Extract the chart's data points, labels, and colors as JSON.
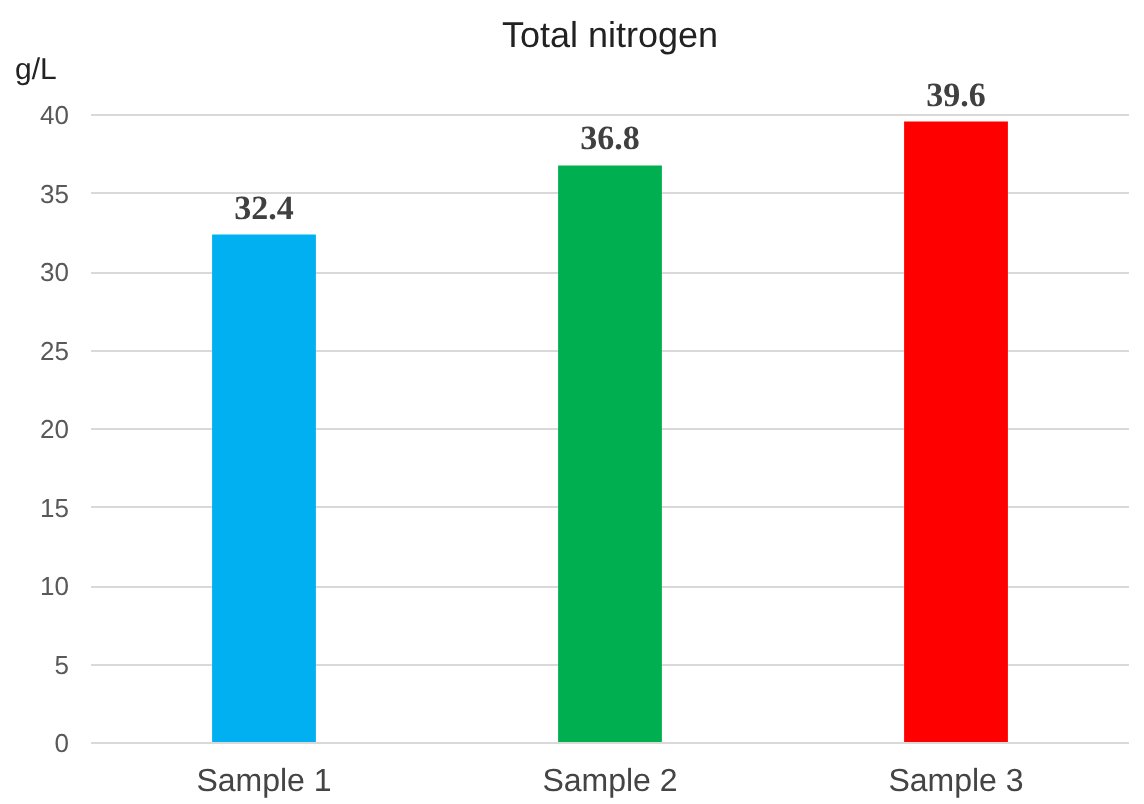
{
  "chart_data": {
    "type": "bar",
    "title": "Total nitrogen",
    "ylabel": "g/L",
    "categories": [
      "Sample 1",
      "Sample 2",
      "Sample 3"
    ],
    "values": [
      32.4,
      36.8,
      39.6
    ],
    "colors": [
      "#00b0f0",
      "#00b050",
      "#ff0000"
    ],
    "ylim": [
      0,
      40
    ],
    "yticks": [
      0,
      5,
      10,
      15,
      20,
      25,
      30,
      35,
      40
    ],
    "grid": "y",
    "data_labels": true
  }
}
